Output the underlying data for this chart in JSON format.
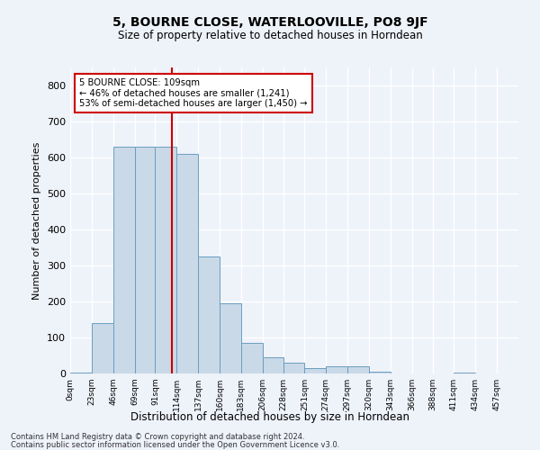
{
  "title": "5, BOURNE CLOSE, WATERLOOVILLE, PO8 9JF",
  "subtitle": "Size of property relative to detached houses in Horndean",
  "xlabel": "Distribution of detached houses by size in Horndean",
  "ylabel": "Number of detached properties",
  "bin_labels": [
    "0sqm",
    "23sqm",
    "46sqm",
    "69sqm",
    "91sqm",
    "114sqm",
    "137sqm",
    "160sqm",
    "183sqm",
    "206sqm",
    "228sqm",
    "251sqm",
    "274sqm",
    "297sqm",
    "320sqm",
    "343sqm",
    "366sqm",
    "388sqm",
    "411sqm",
    "434sqm",
    "457sqm"
  ],
  "bin_edges": [
    0,
    23,
    46,
    69,
    91,
    114,
    137,
    160,
    183,
    206,
    228,
    251,
    274,
    297,
    320,
    343,
    366,
    388,
    411,
    434,
    457,
    480
  ],
  "bar_heights": [
    2,
    140,
    630,
    630,
    630,
    610,
    325,
    195,
    85,
    45,
    30,
    15,
    20,
    20,
    5,
    0,
    0,
    0,
    3,
    0,
    0
  ],
  "bar_color": "#c9d9e8",
  "bar_edge_color": "#6a9ec0",
  "property_line_x": 109,
  "property_line_color": "#cc0000",
  "annotation_text": "5 BOURNE CLOSE: 109sqm\n← 46% of detached houses are smaller (1,241)\n53% of semi-detached houses are larger (1,450) →",
  "annotation_box_color": "#ffffff",
  "annotation_box_edge_color": "#cc0000",
  "bg_color": "#eef2f9",
  "grid_color": "#ffffff",
  "ylim": [
    0,
    850
  ],
  "yticks": [
    0,
    100,
    200,
    300,
    400,
    500,
    600,
    700,
    800
  ],
  "footnote1": "Contains HM Land Registry data © Crown copyright and database right 2024.",
  "footnote2": "Contains public sector information licensed under the Open Government Licence v3.0."
}
